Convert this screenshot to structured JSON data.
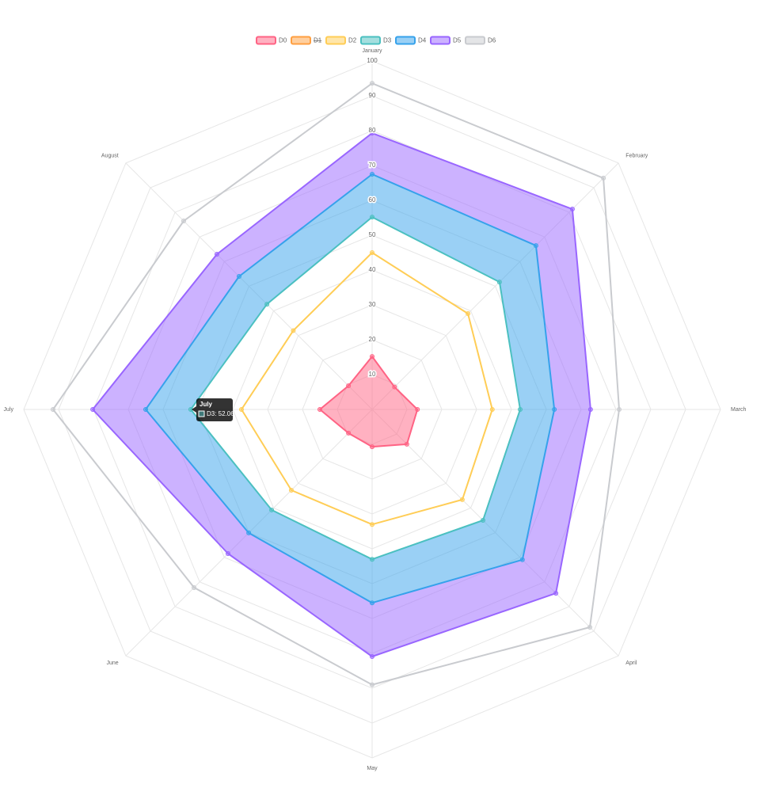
{
  "chart_data": {
    "type": "radar",
    "categories": [
      "January",
      "February",
      "March",
      "April",
      "May",
      "June",
      "July",
      "August"
    ],
    "rlim": [
      0,
      100
    ],
    "rticks": [
      10,
      20,
      30,
      40,
      50,
      60,
      70,
      80,
      90,
      100
    ],
    "grid": true,
    "legend": "top",
    "series": [
      {
        "name": "D0",
        "color": "#ff6384",
        "fill": "origin",
        "values": [
          15.2,
          9.1,
          13,
          14.1,
          10.7,
          9.6,
          15,
          9.6
        ]
      },
      {
        "name": "D1",
        "color": "#ff9f40",
        "hidden": true
      },
      {
        "name": "D2",
        "color": "#ffcd56",
        "fill": "none",
        "values": [
          45,
          38.9,
          34.5,
          36.6,
          33,
          32.8,
          37.5,
          32
        ]
      },
      {
        "name": "D3",
        "color": "#4bc0c0",
        "fill": "none",
        "values": [
          55.2,
          51.7,
          42.5,
          45,
          43,
          40.8,
          52.06,
          42.7
        ]
      },
      {
        "name": "D4",
        "color": "#36a2eb",
        "fill": "previous",
        "values": [
          67.5,
          66.5,
          52.3,
          61,
          55.5,
          50.1,
          65,
          54
        ]
      },
      {
        "name": "D5",
        "color": "#9966ff",
        "fill": "previous",
        "values": [
          79.3,
          81.3,
          62.7,
          74.6,
          70.9,
          58.5,
          80.2,
          63
        ]
      },
      {
        "name": "D6",
        "color": "#c9cbcf",
        "fill": "none",
        "values": [
          93.6,
          93.9,
          70.9,
          88.4,
          79,
          72.3,
          91.6,
          76.5
        ]
      }
    ],
    "tooltip": {
      "title": "July",
      "label": "D3: 52.06"
    }
  }
}
